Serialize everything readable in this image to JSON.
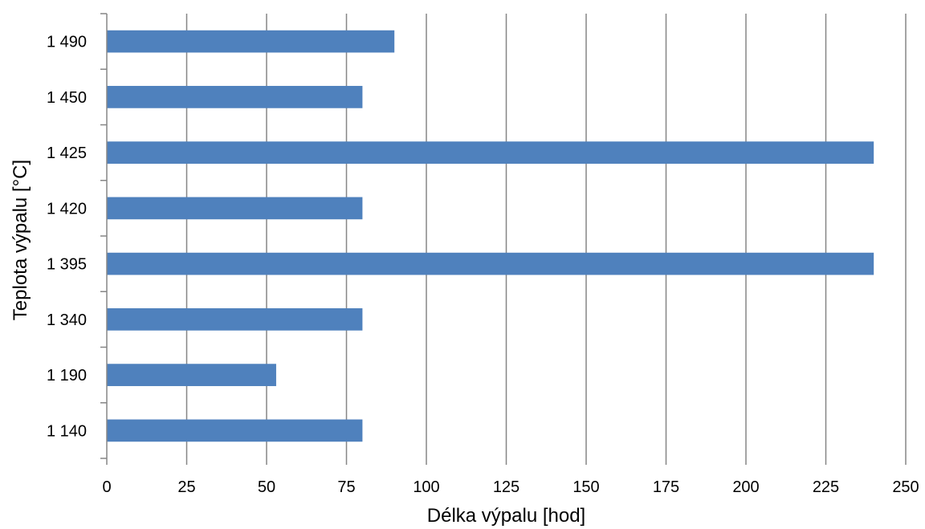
{
  "chart_data": {
    "type": "bar",
    "orientation": "horizontal",
    "categories": [
      "1 140",
      "1 190",
      "1 340",
      "1 395",
      "1 420",
      "1 425",
      "1 450",
      "1 490"
    ],
    "values": [
      80,
      53,
      80,
      240,
      80,
      240,
      80,
      90
    ],
    "xlabel": "Délka výpalu [hod]",
    "ylabel": "Teplota výpalu [°C]",
    "xlim": [
      0,
      250
    ],
    "xticks": [
      0,
      25,
      50,
      75,
      100,
      125,
      150,
      175,
      200,
      225,
      250
    ],
    "grid": "vertical",
    "legend": "none",
    "bar_color": "#4F81BD",
    "grid_color": "#868686"
  }
}
